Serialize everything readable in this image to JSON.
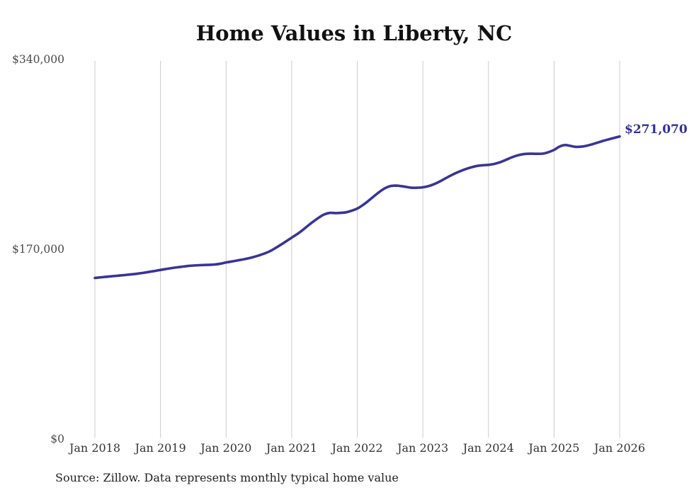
{
  "header": {
    "title": "Home Values in Liberty, NC"
  },
  "footer": {
    "source_note": "Source: Zillow. Data represents monthly typical home value"
  },
  "chart_data": {
    "type": "line",
    "title": "Home Values in Liberty, NC",
    "xlabel": "",
    "ylabel": "",
    "frequency": "monthly",
    "x_start": "Jan 2018",
    "x_end": "Jan 2026",
    "x_tick_labels": [
      "Jan 2018",
      "Jan 2019",
      "Jan 2020",
      "Jan 2021",
      "Jan 2022",
      "Jan 2023",
      "Jan 2024",
      "Jan 2025",
      "Jan 2026"
    ],
    "y_tick_labels": [
      "$0",
      "$170,000",
      "$340,000"
    ],
    "y_tick_values": [
      0,
      170000,
      340000
    ],
    "ylim": [
      0,
      340000
    ],
    "grid": "vertical-only",
    "legend": "none",
    "end_label": "$271,070",
    "end_value": 271070,
    "colors": {
      "line": "#3a3494",
      "end_label": "#333191",
      "gridline": "#cccccc",
      "title": "#111111",
      "y_tick": "#4a4a4a",
      "x_tick": "#333333"
    },
    "series": [
      {
        "name": "Monthly typical home value",
        "values": [
          144300,
          144800,
          145300,
          145800,
          146200,
          146700,
          147200,
          147700,
          148300,
          149000,
          149800,
          150600,
          151500,
          152300,
          153100,
          153800,
          154400,
          155000,
          155400,
          155700,
          155900,
          156100,
          156400,
          157100,
          158200,
          159000,
          159900,
          160800,
          161800,
          163000,
          164500,
          166200,
          168200,
          171000,
          174000,
          177200,
          180400,
          183600,
          187200,
          191200,
          195000,
          198500,
          201300,
          202600,
          202400,
          202600,
          203200,
          204600,
          206500,
          209500,
          213200,
          217300,
          221200,
          224500,
          226500,
          227000,
          226600,
          225800,
          225100,
          225100,
          225500,
          226500,
          228200,
          230500,
          233200,
          235800,
          238200,
          240300,
          242100,
          243600,
          244700,
          245300,
          245600,
          246400,
          247800,
          249700,
          251800,
          253600,
          254900,
          255500,
          255600,
          255500,
          255700,
          257000,
          259000,
          262000,
          263400,
          262600,
          261700,
          261900,
          262800,
          264100,
          265600,
          267100,
          268500,
          269800,
          271070
        ]
      }
    ]
  }
}
